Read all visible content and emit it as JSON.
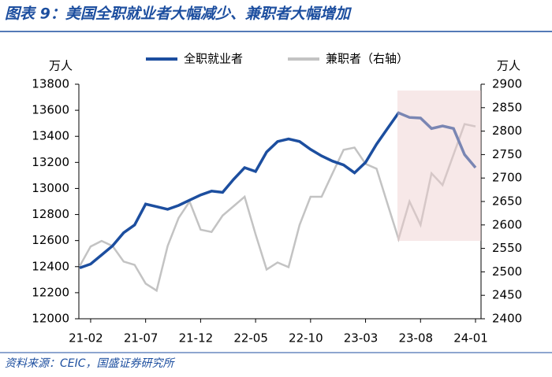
{
  "title": "图表 9：美国全职就业者大幅减少、兼职者大幅增加",
  "source": "资料来源：CEIC，国盛证券研究所",
  "chart_data": {
    "type": "line",
    "y_unit": "万人",
    "y2_unit": "万人",
    "categories": [
      null,
      "21-02",
      null,
      null,
      null,
      null,
      "21-07",
      null,
      null,
      null,
      null,
      "21-12",
      null,
      null,
      null,
      null,
      "22-05",
      null,
      null,
      null,
      null,
      "22-10",
      null,
      null,
      null,
      null,
      "23-03",
      null,
      null,
      null,
      null,
      "23-08",
      null,
      null,
      null,
      null,
      "24-01"
    ],
    "series": [
      {
        "name": "全职就业者",
        "color": "#1c4e9f",
        "axis": "y",
        "values": [
          12390,
          12420,
          12490,
          12560,
          12660,
          12720,
          12880,
          12860,
          12840,
          12870,
          12910,
          12950,
          12980,
          12970,
          13070,
          13160,
          13130,
          13280,
          13360,
          13380,
          13360,
          13300,
          13250,
          13210,
          13180,
          13120,
          13200,
          13340,
          13460,
          13580,
          13545,
          13540,
          13460,
          13480,
          13460,
          13260,
          13160
        ]
      },
      {
        "name": "兼职者（右轴）",
        "color": "#c3c3c3",
        "axis": "y2",
        "values": [
          2512,
          2554,
          2566,
          2555,
          2522,
          2515,
          2475,
          2460,
          2555,
          2615,
          2650,
          2590,
          2585,
          2620,
          2640,
          2660,
          2580,
          2505,
          2520,
          2510,
          2600,
          2660,
          2660,
          2710,
          2760,
          2765,
          2730,
          2720,
          2645,
          2570,
          2650,
          2600,
          2710,
          2685,
          2750,
          2815,
          2810
        ]
      }
    ],
    "ylim": [
      12000,
      13800
    ],
    "yticks": [
      12000,
      12200,
      12400,
      12600,
      12800,
      13000,
      13200,
      13400,
      13600,
      13800
    ],
    "y2lim": [
      2400,
      2900
    ],
    "y2ticks": [
      2400,
      2450,
      2500,
      2550,
      2600,
      2650,
      2700,
      2750,
      2800,
      2850,
      2900
    ],
    "legend": "top",
    "grid": false
  }
}
